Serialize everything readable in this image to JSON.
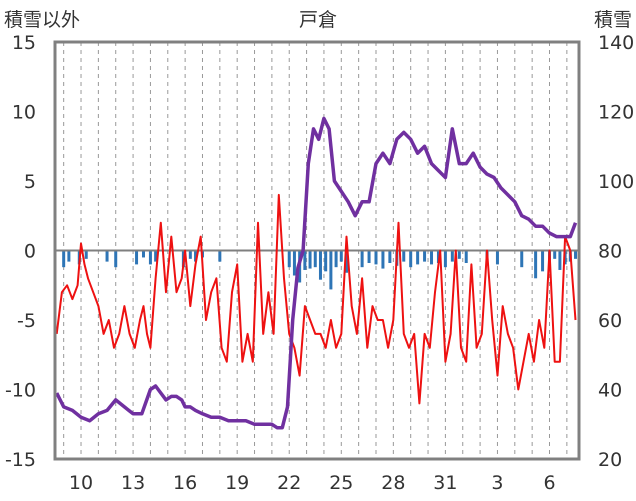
{
  "chart_data": {
    "type": "line",
    "title": "戸倉",
    "left_axis_label": "積雪以外",
    "right_axis_label": "積雪",
    "left_ylim": [
      -15,
      15
    ],
    "left_ticks": [
      "15",
      "10",
      "5",
      "0",
      "-5",
      "-10",
      "-15"
    ],
    "right_ylim": [
      20,
      140
    ],
    "right_ticks": [
      "140",
      "120",
      "100",
      "80",
      "60",
      "40",
      "20"
    ],
    "x_ticks": [
      "10",
      "13",
      "16",
      "19",
      "22",
      "25",
      "28",
      "31",
      "3",
      "6"
    ],
    "grid": "vertical-dashed",
    "colors": {
      "temperature": "#ee1111",
      "snow_depth": "#7030a0",
      "precipitation": "#2e75b6",
      "frame": "#808080",
      "zero_line": "#7f7f7f",
      "grid": "#999999"
    },
    "series": [
      {
        "key": "temperature",
        "axis": "left",
        "x": [
          8.6,
          8.9,
          9.2,
          9.5,
          9.8,
          10.0,
          10.2,
          10.4,
          10.7,
          11.0,
          11.3,
          11.6,
          11.9,
          12.2,
          12.5,
          12.8,
          13.1,
          13.4,
          13.6,
          13.8,
          14.0,
          14.3,
          14.6,
          14.9,
          15.2,
          15.5,
          15.8,
          16.0,
          16.3,
          16.6,
          16.9,
          17.2,
          17.5,
          17.8,
          18.1,
          18.4,
          18.7,
          19.0,
          19.3,
          19.6,
          19.9,
          20.2,
          20.5,
          20.8,
          21.1,
          21.4,
          21.7,
          22.0,
          22.3,
          22.6,
          22.9,
          23.2,
          23.5,
          23.8,
          24.1,
          24.4,
          24.7,
          25.0,
          25.3,
          25.6,
          25.9,
          26.2,
          26.5,
          26.8,
          27.1,
          27.4,
          27.7,
          28.0,
          28.3,
          28.6,
          28.9,
          29.2,
          29.5,
          29.8,
          30.1,
          30.4,
          30.7,
          31.0,
          31.3,
          31.6,
          31.9,
          32.2,
          32.5,
          32.8,
          33.1,
          33.4,
          33.7,
          34.0,
          34.3,
          34.6,
          34.9,
          35.2,
          35.5,
          35.8,
          36.1,
          36.4,
          36.7,
          37.0,
          37.3,
          37.6,
          37.9,
          38.2,
          38.5
        ],
        "values": [
          -6,
          -3,
          -2.5,
          -3.5,
          -2.5,
          0.5,
          -1,
          -2,
          -3,
          -4,
          -6,
          -5,
          -7,
          -6,
          -4,
          -6,
          -7,
          -5,
          -4,
          -6,
          -7,
          -2,
          2,
          -3,
          1,
          -3,
          -2,
          0,
          -4,
          -1,
          1,
          -5,
          -3,
          -2,
          -7,
          -8,
          -3,
          -1,
          -8,
          -6,
          -8,
          2,
          -6,
          -3,
          -6,
          4,
          -2,
          -6,
          -7,
          -9,
          -4,
          -5,
          -6,
          -6,
          -7,
          -5,
          -7,
          -6,
          1,
          -4,
          -6,
          -2,
          -7,
          -4,
          -5,
          -5,
          -7,
          -5,
          2,
          -6,
          -7,
          -6,
          -11,
          -6,
          -7,
          -3,
          0,
          -8,
          -6,
          0,
          -7,
          -8,
          -1,
          -7,
          -6,
          0,
          -5,
          -9,
          -4,
          -6,
          -7,
          -10,
          -8,
          -6,
          -8,
          -5,
          -7,
          0,
          -8,
          -8,
          1,
          0,
          -5
        ]
      },
      {
        "key": "snow_depth",
        "axis": "right",
        "x": [
          8.6,
          9.0,
          9.5,
          10.0,
          10.5,
          11.0,
          11.5,
          12.0,
          12.5,
          13.0,
          13.5,
          14.0,
          14.3,
          14.6,
          14.9,
          15.2,
          15.5,
          15.8,
          16.0,
          16.3,
          16.6,
          17.0,
          17.5,
          18.0,
          18.5,
          19.0,
          19.5,
          20.0,
          20.5,
          21.0,
          21.3,
          21.6,
          21.9,
          22.2,
          22.5,
          22.8,
          23.1,
          23.4,
          23.7,
          24.0,
          24.3,
          24.6,
          25.0,
          25.4,
          25.8,
          26.2,
          26.6,
          27.0,
          27.4,
          27.8,
          28.2,
          28.6,
          29.0,
          29.4,
          29.8,
          30.2,
          30.6,
          31.0,
          31.4,
          31.8,
          32.2,
          32.6,
          33.0,
          33.4,
          33.8,
          34.2,
          34.6,
          35.0,
          35.4,
          35.8,
          36.2,
          36.6,
          37.0,
          37.4,
          37.8,
          38.2,
          38.5
        ],
        "values": [
          39,
          35,
          34,
          32,
          31,
          33,
          34,
          37,
          35,
          33,
          33,
          40,
          41,
          39,
          37,
          38,
          38,
          37,
          35,
          35,
          34,
          33,
          32,
          32,
          31,
          31,
          31,
          30,
          30,
          30,
          29,
          29,
          35,
          60,
          75,
          80,
          105,
          115,
          112,
          118,
          115,
          100,
          97,
          94,
          90,
          94,
          94,
          105,
          108,
          105,
          112,
          114,
          112,
          108,
          110,
          105,
          103,
          101,
          115,
          105,
          105,
          108,
          104,
          102,
          101,
          98,
          96,
          94,
          90,
          89,
          87,
          87,
          85,
          84,
          84,
          84,
          88
        ]
      }
    ],
    "precipitation_bars": {
      "axis": "left",
      "x": [
        9.0,
        9.3,
        9.9,
        10.3,
        11.5,
        12.0,
        13.2,
        13.6,
        14.0,
        14.3,
        15.9,
        16.3,
        16.6,
        17.0,
        18.0,
        22.0,
        22.3,
        22.6,
        22.9,
        23.2,
        23.5,
        23.8,
        24.1,
        24.4,
        24.7,
        25.0,
        25.3,
        26.2,
        26.6,
        27.0,
        27.4,
        27.8,
        28.2,
        28.6,
        29.0,
        29.4,
        29.8,
        30.2,
        30.6,
        31.0,
        31.4,
        31.8,
        32.2,
        33.4,
        34.0,
        35.4,
        36.2,
        36.6,
        37.0,
        37.3,
        37.6,
        37.9,
        38.2,
        38.5
      ],
      "values": [
        -1.2,
        -0.8,
        -1.0,
        -0.6,
        -0.8,
        -1.2,
        -1.0,
        -0.5,
        -1.0,
        -0.8,
        -1.2,
        -0.6,
        -0.8,
        -0.5,
        -0.8,
        -1.2,
        -1.8,
        -2.3,
        -1.4,
        -1.3,
        -1.2,
        -2.1,
        -1.5,
        -2.8,
        -1.2,
        -0.8,
        -1.6,
        -1.2,
        -0.9,
        -1.0,
        -1.3,
        -0.9,
        -1.1,
        -0.8,
        -1.2,
        -1.0,
        -0.8,
        -1.0,
        -0.9,
        -1.2,
        -0.8,
        -0.6,
        -0.9,
        -0.7,
        -1.0,
        -1.2,
        -2.0,
        -1.5,
        -1.2,
        -0.6,
        -1.4,
        -1.0,
        -0.8,
        -0.6
      ]
    }
  }
}
